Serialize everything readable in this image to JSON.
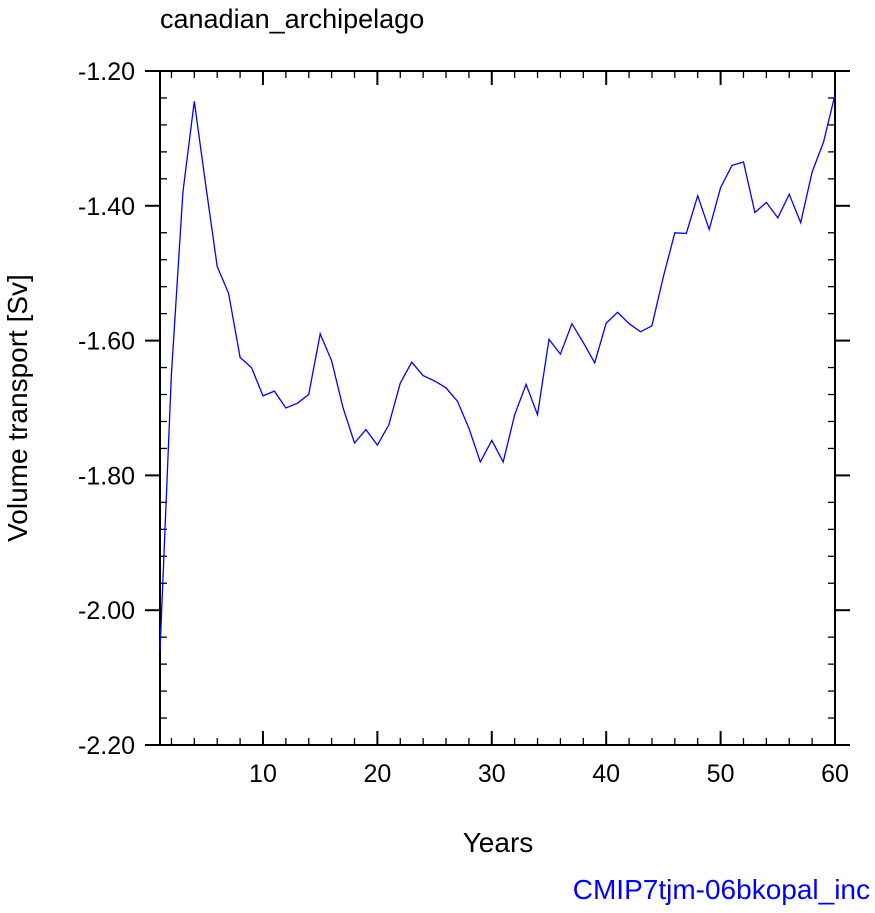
{
  "chart_data": {
    "type": "line",
    "title": "canadian_archipelago",
    "xlabel": "Years",
    "ylabel": "Volume transport [Sv]",
    "xlim": [
      1,
      60
    ],
    "ylim": [
      -2.2,
      -1.2
    ],
    "x_ticks": [
      10,
      20,
      30,
      40,
      50,
      60
    ],
    "y_ticks": [
      -1.2,
      -1.4,
      -1.6,
      -1.8,
      -2.0,
      -2.2
    ],
    "x_tick_labels": [
      "10",
      "20",
      "30",
      "40",
      "50",
      "60"
    ],
    "y_tick_labels": [
      "-1.20",
      "-1.40",
      "-1.60",
      "-1.80",
      "-2.00",
      "-2.20"
    ],
    "grid": false,
    "series": [
      {
        "color": "#0000ff",
        "x": [
          1,
          2,
          3,
          4,
          5,
          6,
          7,
          8,
          9,
          10,
          11,
          12,
          13,
          14,
          15,
          16,
          17,
          18,
          19,
          20,
          21,
          22,
          23,
          24,
          25,
          26,
          27,
          28,
          29,
          30,
          31,
          32,
          33,
          34,
          35,
          36,
          37,
          38,
          39,
          40,
          41,
          42,
          43,
          44,
          45,
          46,
          47,
          48,
          49,
          50,
          51,
          52,
          53,
          54,
          55,
          56,
          57,
          58,
          59,
          60
        ],
        "values": [
          -2.06,
          -1.65,
          -1.38,
          -1.245,
          -1.37,
          -1.49,
          -1.53,
          -1.625,
          -1.64,
          -1.682,
          -1.675,
          -1.7,
          -1.693,
          -1.68,
          -1.59,
          -1.63,
          -1.7,
          -1.752,
          -1.732,
          -1.755,
          -1.725,
          -1.663,
          -1.632,
          -1.652,
          -1.66,
          -1.67,
          -1.69,
          -1.73,
          -1.78,
          -1.748,
          -1.78,
          -1.71,
          -1.665,
          -1.71,
          -1.598,
          -1.62,
          -1.575,
          -1.603,
          -1.633,
          -1.574,
          -1.558,
          -1.575,
          -1.587,
          -1.578,
          -1.505,
          -1.44,
          -1.441,
          -1.385,
          -1.435,
          -1.373,
          -1.34,
          -1.335,
          -1.41,
          -1.395,
          -1.418,
          -1.383,
          -1.425,
          -1.35,
          -1.305,
          -1.235
        ]
      }
    ]
  },
  "footer": {
    "label": "CMIP7tjm-06bkopal_inc",
    "color": "#0000ff"
  }
}
